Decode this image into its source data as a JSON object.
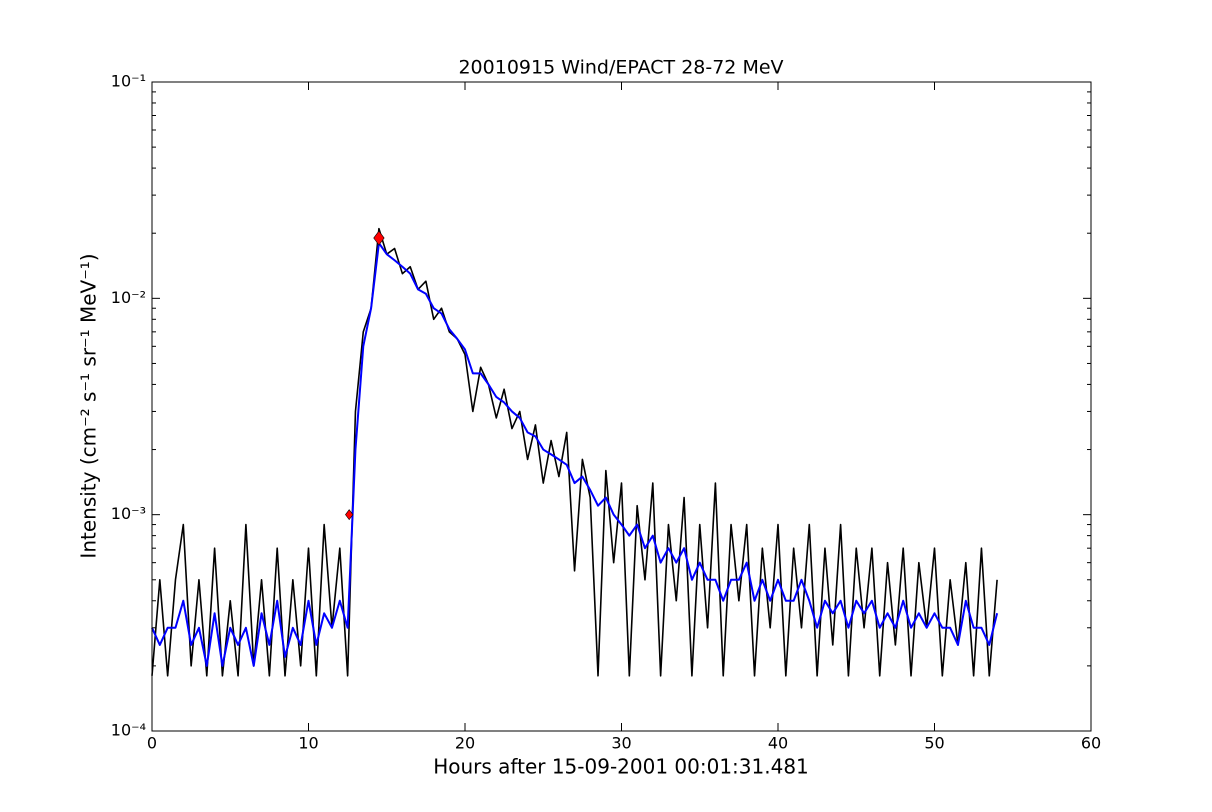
{
  "chart_data": {
    "type": "line",
    "title": "20010915 Wind/EPACT 28-72 MeV",
    "xlabel": "Hours after 15-09-2001 00:01:31.481",
    "ylabel": "Intensity (cm⁻² s⁻¹ sr⁻¹ MeV⁻¹)",
    "log_y": true,
    "xlim": [
      0,
      60
    ],
    "xticks": [
      0,
      10,
      20,
      30,
      40,
      50,
      60
    ],
    "ylim": [
      0.0001,
      0.1
    ],
    "yticks": [
      {
        "value": 0.0001,
        "label": "10⁻⁴"
      },
      {
        "value": 0.001,
        "label": "10⁻³"
      },
      {
        "value": 0.01,
        "label": "10⁻²"
      },
      {
        "value": 0.1,
        "label": "10⁻¹"
      }
    ],
    "x": [
      0,
      0.5,
      1,
      1.5,
      2,
      2.5,
      3,
      3.5,
      4,
      4.5,
      5,
      5.5,
      6,
      6.5,
      7,
      7.5,
      8,
      8.5,
      9,
      9.5,
      10,
      10.5,
      11,
      11.5,
      12,
      12.5,
      13,
      13.5,
      14,
      14.5,
      15,
      15.5,
      16,
      16.5,
      17,
      17.5,
      18,
      18.5,
      19,
      19.5,
      20,
      20.5,
      21,
      21.5,
      22,
      22.5,
      23,
      23.5,
      24,
      24.5,
      25,
      25.5,
      26,
      26.5,
      27,
      27.5,
      28,
      28.5,
      29,
      29.5,
      30,
      30.5,
      31,
      31.5,
      32,
      32.5,
      33,
      33.5,
      34,
      34.5,
      35,
      35.5,
      36,
      36.5,
      37,
      37.5,
      38,
      38.5,
      39,
      39.5,
      40,
      40.5,
      41,
      41.5,
      42,
      42.5,
      43,
      43.5,
      44,
      44.5,
      45,
      45.5,
      46,
      46.5,
      47,
      47.5,
      48,
      48.5,
      49,
      49.5,
      50,
      50.5,
      51,
      51.5,
      52,
      52.5,
      53,
      53.5,
      54
    ],
    "series": [
      {
        "color": "#000000",
        "values": [
          0.00018,
          0.0005,
          0.00018,
          0.0005,
          0.0009,
          0.0002,
          0.0005,
          0.00018,
          0.0007,
          0.00018,
          0.0004,
          0.00018,
          0.0009,
          0.0002,
          0.0005,
          0.00018,
          0.0007,
          0.00018,
          0.0005,
          0.0002,
          0.0007,
          0.00018,
          0.0009,
          0.0003,
          0.0007,
          0.00018,
          0.003,
          0.007,
          0.009,
          0.021,
          0.016,
          0.017,
          0.013,
          0.014,
          0.011,
          0.012,
          0.008,
          0.009,
          0.007,
          0.0065,
          0.0055,
          0.003,
          0.0048,
          0.004,
          0.0028,
          0.0038,
          0.0025,
          0.003,
          0.0018,
          0.0026,
          0.0014,
          0.0022,
          0.0015,
          0.0024,
          0.00055,
          0.0018,
          0.0012,
          0.00018,
          0.0016,
          0.0006,
          0.0014,
          0.00018,
          0.0011,
          0.0005,
          0.0014,
          0.00018,
          0.0009,
          0.0004,
          0.0012,
          0.00018,
          0.0009,
          0.0003,
          0.0014,
          0.00018,
          0.0009,
          0.0004,
          0.0009,
          0.00018,
          0.0007,
          0.0003,
          0.0009,
          0.00018,
          0.0007,
          0.0003,
          0.0009,
          0.00018,
          0.0007,
          0.00025,
          0.0009,
          0.00018,
          0.0007,
          0.0003,
          0.0007,
          0.00018,
          0.0006,
          0.00025,
          0.0007,
          0.00018,
          0.0006,
          0.0003,
          0.0007,
          0.00018,
          0.0005,
          0.00025,
          0.0006,
          0.00018,
          0.0007,
          0.00018,
          0.0005
        ]
      },
      {
        "color": "#0000ff",
        "values": [
          0.0003,
          0.00025,
          0.0003,
          0.0003,
          0.0004,
          0.00025,
          0.0003,
          0.0002,
          0.00035,
          0.0002,
          0.0003,
          0.00025,
          0.0003,
          0.0002,
          0.00035,
          0.00025,
          0.0004,
          0.00022,
          0.0003,
          0.00025,
          0.0004,
          0.00025,
          0.00035,
          0.0003,
          0.0004,
          0.0003,
          0.002,
          0.006,
          0.009,
          0.018,
          0.016,
          0.015,
          0.014,
          0.013,
          0.011,
          0.0105,
          0.009,
          0.0085,
          0.0072,
          0.0065,
          0.0058,
          0.0045,
          0.0045,
          0.004,
          0.0035,
          0.0033,
          0.003,
          0.0028,
          0.0024,
          0.0023,
          0.002,
          0.0019,
          0.0018,
          0.0017,
          0.0014,
          0.0015,
          0.0013,
          0.0011,
          0.0012,
          0.001,
          0.0009,
          0.0008,
          0.0009,
          0.0007,
          0.0008,
          0.0006,
          0.0007,
          0.0006,
          0.0007,
          0.0005,
          0.0006,
          0.0005,
          0.0005,
          0.0004,
          0.0005,
          0.0005,
          0.0006,
          0.0004,
          0.0005,
          0.0004,
          0.0005,
          0.0004,
          0.0004,
          0.0005,
          0.0004,
          0.0003,
          0.0004,
          0.00035,
          0.0004,
          0.0003,
          0.0004,
          0.00035,
          0.0004,
          0.0003,
          0.00035,
          0.0003,
          0.0004,
          0.0003,
          0.00035,
          0.0003,
          0.00035,
          0.0003,
          0.0003,
          0.00025,
          0.0004,
          0.0003,
          0.0003,
          0.00025,
          0.00035
        ]
      }
    ],
    "markers": {
      "color": "#ff0000",
      "x": [
        12.6,
        14.5
      ],
      "values": [
        0.001,
        0.019
      ]
    }
  }
}
